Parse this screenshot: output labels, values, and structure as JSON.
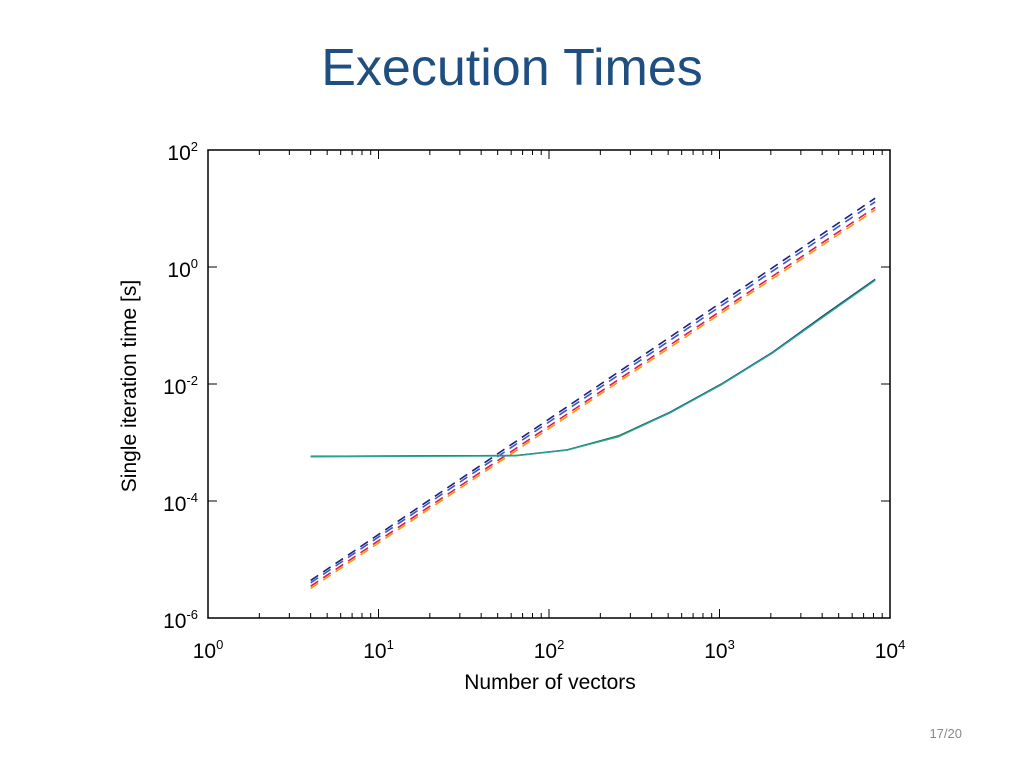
{
  "slide": {
    "title": "Execution Times",
    "page_number": "17/20"
  },
  "chart_data": {
    "type": "line",
    "title": "",
    "xlabel": "Number of vectors",
    "ylabel": "Single iteration time [s]",
    "x_scale": "log",
    "y_scale": "log",
    "xlim": [
      1,
      10000
    ],
    "ylim": [
      1e-06,
      100
    ],
    "x_ticks": [
      {
        "base": "10",
        "exp": "0"
      },
      {
        "base": "10",
        "exp": "1"
      },
      {
        "base": "10",
        "exp": "2"
      },
      {
        "base": "10",
        "exp": "3"
      },
      {
        "base": "10",
        "exp": "4"
      }
    ],
    "y_ticks": [
      {
        "base": "10",
        "exp": "-6"
      },
      {
        "base": "10",
        "exp": "-4"
      },
      {
        "base": "10",
        "exp": "-2"
      },
      {
        "base": "10",
        "exp": "0"
      },
      {
        "base": "10",
        "exp": "2"
      }
    ],
    "grid": false,
    "legend": "none",
    "series": [
      {
        "style": "dashed",
        "color": "#1a237e",
        "x": [
          4,
          8192
        ],
        "y": [
          4.4e-06,
          15
        ]
      },
      {
        "style": "dashed",
        "color": "#3a57c4",
        "x": [
          4,
          8192
        ],
        "y": [
          4e-06,
          13
        ]
      },
      {
        "style": "dashed",
        "color": "#d81b60",
        "x": [
          4,
          8192
        ],
        "y": [
          3.5e-06,
          10.5
        ]
      },
      {
        "style": "dashed",
        "color": "#ff9800",
        "x": [
          4,
          8192
        ],
        "y": [
          3.2e-06,
          9.5
        ]
      },
      {
        "style": "solid",
        "color": "#1e3a8a",
        "x": [
          4,
          64,
          128,
          256,
          512,
          1024,
          2048,
          4096,
          8192
        ],
        "y": [
          0.00058,
          0.0006,
          0.00075,
          0.0013,
          0.0033,
          0.01,
          0.035,
          0.15,
          0.62
        ]
      },
      {
        "style": "solid",
        "color": "#2e7d32",
        "x": [
          4,
          64,
          128,
          256,
          512,
          1024,
          2048,
          4096,
          8192
        ],
        "y": [
          0.00058,
          0.0006,
          0.00074,
          0.0013,
          0.0032,
          0.0098,
          0.034,
          0.145,
          0.6
        ]
      },
      {
        "style": "solid",
        "color": "#26a69a",
        "x": [
          4,
          64,
          128,
          256,
          512,
          1024,
          2048,
          4096,
          8192
        ],
        "y": [
          0.00057,
          0.00059,
          0.00074,
          0.00125,
          0.0032,
          0.0097,
          0.034,
          0.142,
          0.59
        ]
      }
    ]
  }
}
